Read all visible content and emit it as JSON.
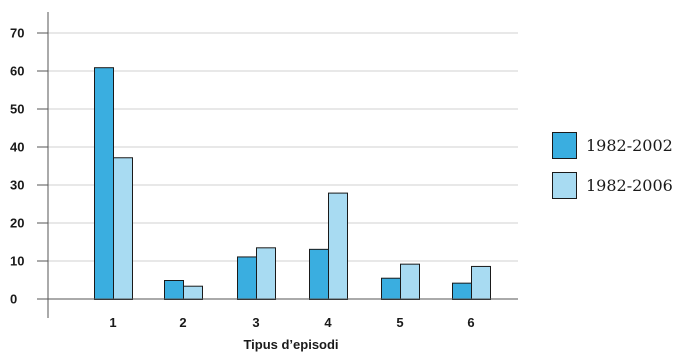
{
  "chart_data": {
    "type": "bar",
    "title": "",
    "xlabel": "Tipus d’episodi",
    "ylabel": "",
    "categories": [
      "1",
      "2",
      "3",
      "4",
      "5",
      "6"
    ],
    "series": [
      {
        "name": "1982-2002",
        "color": "#3aaee0",
        "values": [
          61,
          5,
          11.2,
          13.2,
          5.6,
          4.3
        ]
      },
      {
        "name": "1982-2006",
        "color": "#a8dbf2",
        "values": [
          37.3,
          3.5,
          13.6,
          28,
          9.3,
          8.7
        ]
      }
    ],
    "yticks": [
      0,
      10,
      20,
      30,
      40,
      50,
      60,
      70
    ],
    "ylim": [
      0,
      75
    ],
    "grid": true,
    "legend_position": "right"
  }
}
